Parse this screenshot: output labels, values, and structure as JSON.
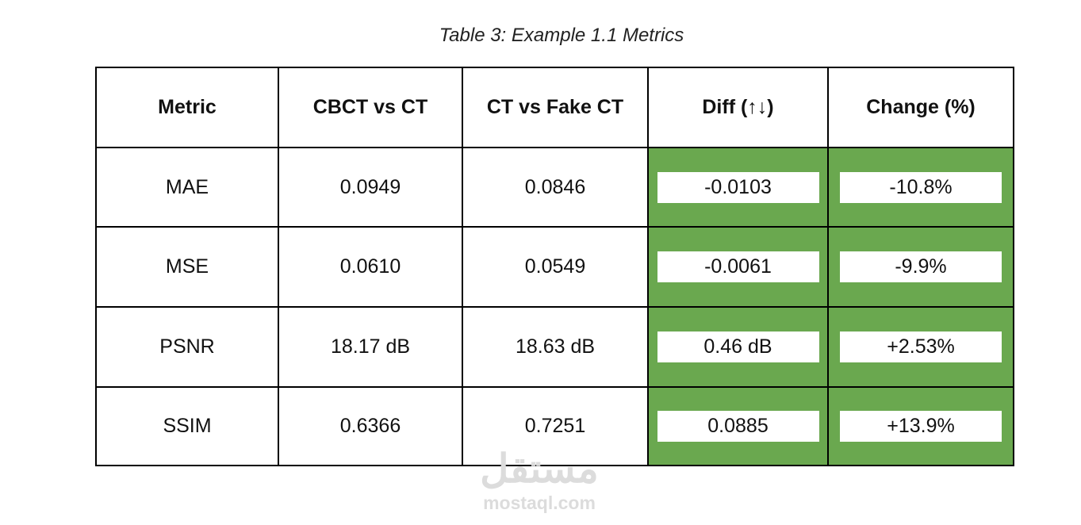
{
  "caption": "Table 3: Example 1.1 Metrics",
  "table": {
    "header": [
      "Metric",
      "CBCT vs CT",
      "CT vs Fake CT",
      "Diff (↑↓)",
      "Change (%)"
    ],
    "rows": [
      [
        "MAE",
        "0.0949",
        "0.0846",
        "-0.0103",
        "-10.8%"
      ],
      [
        "MSE",
        "0.0610",
        "0.0549",
        "-0.0061",
        "-9.9%"
      ],
      [
        "PSNR",
        "18.17 dB",
        "18.63 dB",
        "0.46 dB",
        "+2.53%"
      ],
      [
        "SSIM",
        "0.6366",
        "0.7251",
        "0.0885",
        "+13.9%"
      ]
    ]
  },
  "watermark": {
    "arabic": "مستقل",
    "latin": "mostaql.com"
  }
}
